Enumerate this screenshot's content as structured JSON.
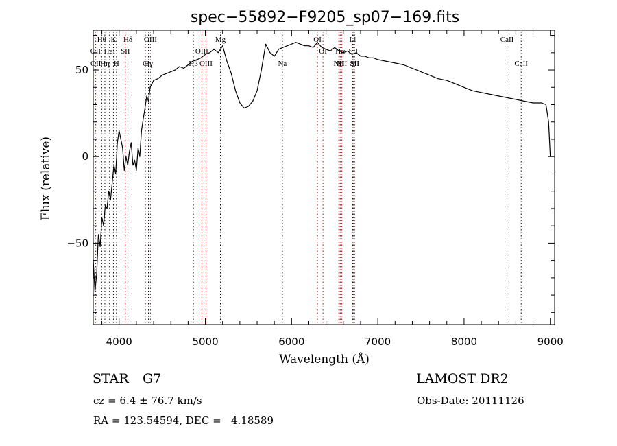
{
  "chart_data": {
    "type": "line",
    "title": "spec−55892−F9205_sp07−169.fits",
    "xlabel": "Wavelength (Å)",
    "ylabel": "Flux (relative)",
    "xlim": [
      3700,
      9050
    ],
    "ylim": [
      -97,
      73
    ],
    "x_ticks": [
      4000,
      5000,
      6000,
      7000,
      8000,
      9000
    ],
    "y_ticks": [
      -50,
      0,
      50
    ],
    "y_tick_labels": [
      "−50",
      "0",
      "50"
    ],
    "grid": false,
    "series": [
      {
        "x": [
          3700,
          3720,
          3740,
          3760,
          3780,
          3800,
          3820,
          3840,
          3860,
          3880,
          3900,
          3920,
          3940,
          3960,
          3980,
          4000,
          4020,
          4040,
          4060,
          4080,
          4100,
          4120,
          4140,
          4160,
          4180,
          4200,
          4220,
          4240,
          4260,
          4280,
          4300,
          4320,
          4340,
          4360,
          4380,
          4400,
          4450,
          4500,
          4550,
          4600,
          4650,
          4700,
          4750,
          4800,
          4850,
          4900,
          4950,
          5000,
          5050,
          5100,
          5150,
          5200,
          5250,
          5300,
          5350,
          5400,
          5450,
          5500,
          5550,
          5600,
          5650,
          5700,
          5750,
          5800,
          5850,
          5900,
          5950,
          6000,
          6050,
          6100,
          6150,
          6200,
          6250,
          6300,
          6350,
          6400,
          6450,
          6500,
          6550,
          6600,
          6650,
          6700,
          6750,
          6800,
          6850,
          6900,
          6950,
          7000,
          7100,
          7200,
          7300,
          7400,
          7500,
          7600,
          7700,
          7800,
          7900,
          8000,
          8100,
          8200,
          8300,
          8400,
          8500,
          8600,
          8700,
          8800,
          8900,
          8950,
          8980,
          9000
        ],
        "y": [
          -60,
          -78,
          -68,
          -45,
          -52,
          -35,
          -40,
          -28,
          -30,
          -20,
          -25,
          -15,
          -5,
          -10,
          8,
          15,
          10,
          5,
          -8,
          0,
          -5,
          3,
          8,
          -5,
          -2,
          -8,
          5,
          0,
          15,
          22,
          28,
          35,
          32,
          40,
          42,
          44,
          45,
          47,
          48,
          49,
          50,
          52,
          51,
          53,
          55,
          56,
          57,
          59,
          60,
          62,
          60,
          64,
          55,
          48,
          38,
          31,
          28,
          29,
          32,
          38,
          50,
          65,
          60,
          58,
          62,
          63,
          64,
          65,
          66,
          65,
          64,
          64,
          63,
          66,
          63,
          62,
          61,
          63,
          61,
          60,
          61,
          59,
          60,
          58,
          58,
          57,
          57,
          56,
          55,
          54,
          53,
          51,
          49,
          47,
          45,
          44,
          42,
          40,
          38,
          37,
          36,
          35,
          34,
          33,
          32,
          31,
          31,
          30,
          20,
          0
        ]
      }
    ],
    "spectral_lines": [
      {
        "name": "Hθ",
        "x": 3798,
        "row": 0,
        "style": "absorption"
      },
      {
        "name": "K",
        "x": 3934,
        "row": 0,
        "style": "absorption"
      },
      {
        "name": "Hδ",
        "x": 4102,
        "row": 0,
        "style": "absorption"
      },
      {
        "name": "OIII",
        "x": 4363,
        "row": 0,
        "style": "emission"
      },
      {
        "name": "Mg",
        "x": 5175,
        "row": 0,
        "style": "absorption"
      },
      {
        "name": "OI",
        "x": 6300,
        "row": 0,
        "style": "emission"
      },
      {
        "name": "Li",
        "x": 6708,
        "row": 0,
        "style": "absorption"
      },
      {
        "name": "CaII",
        "x": 8498,
        "row": 0,
        "style": "absorption"
      },
      {
        "name": "OII",
        "x": 3727,
        "row": 1,
        "style": "emission"
      },
      {
        "name": "HeI",
        "x": 3889,
        "row": 1,
        "style": "absorption"
      },
      {
        "name": "SII",
        "x": 4072,
        "row": 1,
        "style": "emission"
      },
      {
        "name": "OIII",
        "x": 4959,
        "row": 1,
        "style": "emission"
      },
      {
        "name": "OI",
        "x": 6364,
        "row": 1,
        "style": "emission"
      },
      {
        "name": "Hα",
        "x": 6563,
        "row": 1,
        "style": "absorption"
      },
      {
        "name": "SII",
        "x": 6716,
        "row": 1,
        "style": "emission"
      },
      {
        "name": "OII",
        "x": 3729,
        "row": 2,
        "style": "emission"
      },
      {
        "name": "Hη",
        "x": 3835,
        "row": 2,
        "style": "absorption"
      },
      {
        "name": "H",
        "x": 3969,
        "row": 2,
        "style": "absorption"
      },
      {
        "name": "Hγ",
        "x": 4340,
        "row": 2,
        "style": "absorption"
      },
      {
        "name": "Hβ",
        "x": 4861,
        "row": 2,
        "style": "absorption"
      },
      {
        "name": "OIII",
        "x": 5007,
        "row": 2,
        "style": "emission"
      },
      {
        "name": "NII",
        "x": 6548,
        "row": 2,
        "style": "emission"
      },
      {
        "name": "NII",
        "x": 6583,
        "row": 2,
        "style": "emission"
      },
      {
        "name": "SII",
        "x": 6731,
        "row": 2,
        "style": "emission"
      },
      {
        "name": "G",
        "x": 4304,
        "row": 3,
        "style": "absorption"
      },
      {
        "name": "Na",
        "x": 5893,
        "row": 3,
        "style": "absorption"
      },
      {
        "name": "NII",
        "x": 6548,
        "row": 3,
        "style": "emission"
      },
      {
        "name": "SII",
        "x": 6731,
        "row": 3,
        "style": "emission"
      },
      {
        "name": "CaII",
        "x": 8662,
        "row": 3,
        "style": "absorption"
      }
    ],
    "colors": {
      "spectrum": "#000000",
      "absorption_line": "#000000",
      "emission_line": "#d00000"
    }
  },
  "info": {
    "object_class": "STAR",
    "subclass": "G7",
    "survey": "LAMOST DR2",
    "redshift": "cz = 6.4 ± 76.7 km/s",
    "obs_date": "Obs-Date: 20111126",
    "coords": "RA = 123.54594, DEC =   4.18589"
  }
}
